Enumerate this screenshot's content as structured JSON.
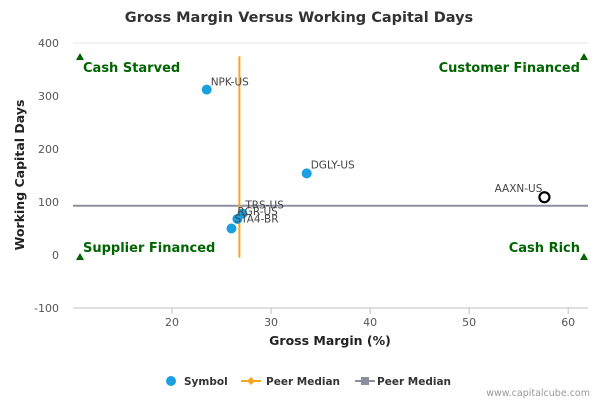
{
  "chart_data": {
    "type": "scatter",
    "title": "Gross Margin Versus Working Capital Days",
    "xlabel": "Gross Margin (%)",
    "ylabel": "Working Capital Days",
    "xlim": [
      10,
      62
    ],
    "ylim": [
      -100,
      400
    ],
    "x_ticks": [
      20,
      30,
      40,
      50,
      60
    ],
    "y_ticks": [
      -100,
      0,
      100,
      200,
      300,
      400
    ],
    "grid": false,
    "legend_position": "bottom",
    "series": [
      {
        "name": "Symbol",
        "color": "#1a9fe0",
        "points": [
          {
            "label": "NPK-US",
            "x": 23.5,
            "y": 312
          },
          {
            "label": "DGLY-US",
            "x": 33.6,
            "y": 154
          },
          {
            "label": "TRS-US",
            "x": 27.1,
            "y": 78
          },
          {
            "label": "RGR-US",
            "x": 26.6,
            "y": 68
          },
          {
            "label": "STA4-BR",
            "x": 26.0,
            "y": 50
          },
          {
            "label": "AAXN-US",
            "x": 57.6,
            "y": 109,
            "highlighted": true
          }
        ]
      }
    ],
    "peer_median_x": {
      "name": "Peer Median",
      "value": 26.8,
      "color": "#f5a623"
    },
    "peer_median_y": {
      "name": "Peer Median",
      "value": 93,
      "color": "#8c8fa0"
    },
    "quadrants": {
      "top_left": "Cash Starved",
      "top_right": "Customer Financed",
      "bottom_left": "Supplier Financed",
      "bottom_right": "Cash Rich"
    },
    "quadrant_marker_color": "#006400"
  },
  "footer": {
    "credit": "www.capitalcube.com"
  }
}
